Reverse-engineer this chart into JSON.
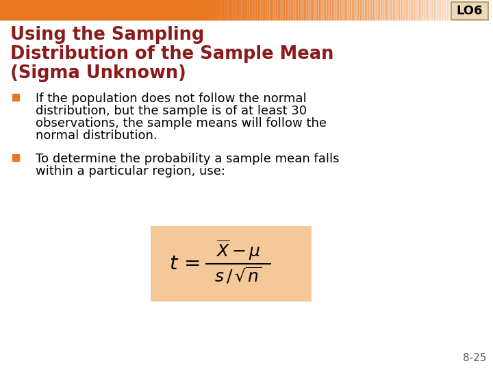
{
  "title_line1": "Using the Sampling",
  "title_line2": "Distribution of the Sample Mean",
  "title_line3": "(Sigma Unknown)",
  "title_color": "#8B1A1A",
  "bullet_color": "#E87722",
  "bullet1_line1": "If the population does not follow the normal",
  "bullet1_line2": "distribution, but the sample is of at least 30",
  "bullet1_line3": "observations, the sample means will follow the",
  "bullet1_line4": "normal distribution.",
  "bullet2_line1": "To determine the probability a sample mean falls",
  "bullet2_line2": "within a particular region, use:",
  "formula_bg": "#F5C89A",
  "lo_box_bg": "#EDD9B8",
  "lo_box_border": "#B8A070",
  "lo_text": "LO6",
  "page_number": "8-25",
  "background_color": "#FFFFFF",
  "header_bar_color": "#E87722",
  "text_color": "#000000",
  "body_fontsize": 13.0,
  "title_fontsize": 18.5
}
